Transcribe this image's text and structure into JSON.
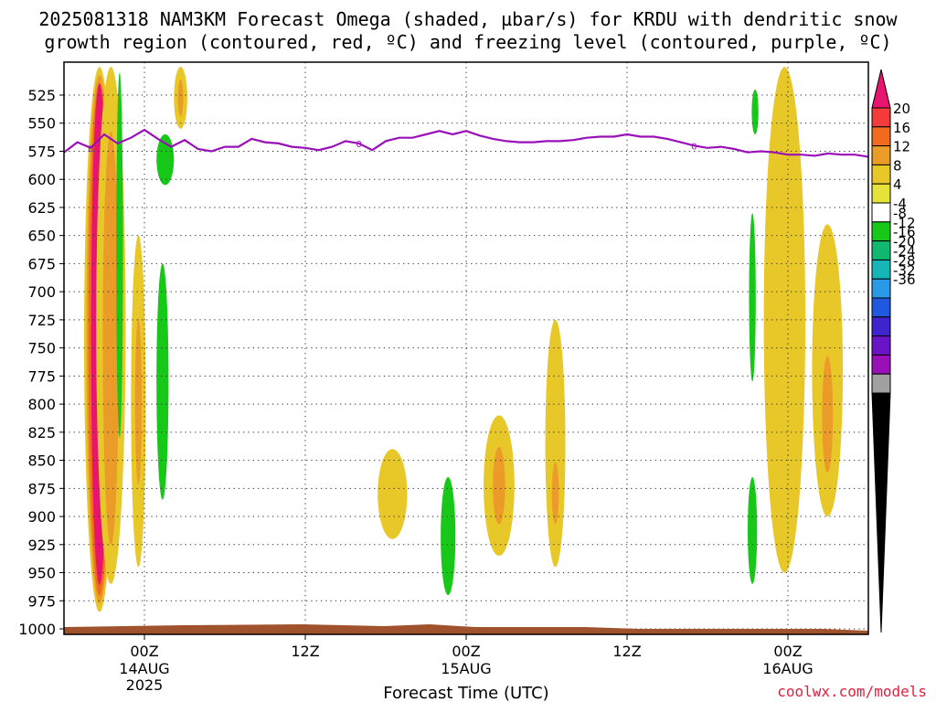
{
  "chart_data": {
    "type": "heatmap",
    "title_line1": "2025081318 NAM3KM Forecast Omega (shaded, µbar/s) for KRDU with dendritic snow",
    "title_line2": "growth region (contoured, red, ºC) and freezing level (contoured, purple, ºC)",
    "xlabel": "Forecast Time (UTC)",
    "credit": "coolwx.com/models",
    "x_ticks": [
      {
        "hour": 6,
        "label": "00Z",
        "sub": "14AUG",
        "sub2": "2025"
      },
      {
        "hour": 18,
        "label": "12Z",
        "sub": "",
        "sub2": ""
      },
      {
        "hour": 30,
        "label": "00Z",
        "sub": "15AUG",
        "sub2": ""
      },
      {
        "hour": 42,
        "label": "12Z",
        "sub": "",
        "sub2": ""
      },
      {
        "hour": 54,
        "label": "00Z",
        "sub": "16AUG",
        "sub2": ""
      }
    ],
    "y_ticks": [
      525,
      550,
      575,
      600,
      625,
      650,
      675,
      700,
      725,
      750,
      775,
      800,
      825,
      850,
      875,
      900,
      925,
      950,
      975,
      1000
    ],
    "y_range_hpa": [
      500,
      1010
    ],
    "x_range_hours": [
      0,
      60
    ],
    "grid": true,
    "colorbar": {
      "labels": [
        "20",
        "16",
        "12",
        "8",
        "4",
        "-4",
        "-8",
        "-12",
        "-16",
        "-20",
        "-24",
        "-28",
        "-32",
        "-36"
      ],
      "colors": [
        "#e8156e",
        "#f43c3c",
        "#f26a1d",
        "#eb9c28",
        "#e8c829",
        "#e5e23a",
        "#ffffff",
        "#18c818",
        "#10b870",
        "#16b6b8",
        "#2a9ae8",
        "#2058e0",
        "#3d24cc",
        "#6a14c8",
        "#9a10b8",
        "#a0a0a0",
        "#000000"
      ]
    },
    "freezing_level": {
      "label": "0",
      "hours": [
        0,
        1,
        2,
        3,
        4,
        5,
        6,
        7,
        8,
        9,
        10,
        11,
        12,
        13,
        14,
        15,
        16,
        17,
        18,
        19,
        20,
        21,
        22,
        23,
        24,
        25,
        26,
        27,
        28,
        29,
        30,
        31,
        32,
        33,
        34,
        35,
        36,
        37,
        38,
        39,
        40,
        41,
        42,
        43,
        44,
        45,
        46,
        47,
        48,
        49,
        50,
        51,
        52,
        53,
        54,
        55,
        56,
        57,
        58,
        59,
        60
      ],
      "pressure_hpa": [
        576,
        567,
        572,
        560,
        568,
        563,
        556,
        564,
        571,
        565,
        573,
        575,
        571,
        571,
        564,
        567,
        568,
        571,
        572,
        574,
        571,
        566,
        568,
        574,
        566,
        563,
        563,
        560,
        557,
        560,
        557,
        561,
        564,
        566,
        567,
        567,
        566,
        566,
        565,
        563,
        562,
        562,
        560,
        562,
        562,
        564,
        567,
        570,
        572,
        571,
        573,
        576,
        575,
        576,
        578,
        578,
        579,
        577,
        578,
        578,
        580
      ]
    },
    "omega_regions": [
      {
        "name": "core-1",
        "hours": [
          1.5,
          3.8
        ],
        "pressure_hpa": [
          500,
          985
        ],
        "max_value": 20
      },
      {
        "name": "core-2",
        "hours": [
          2.4,
          4.6
        ],
        "pressure_hpa": [
          500,
          960
        ],
        "max_value": 8
      },
      {
        "name": "core-3",
        "hours": [
          5.0,
          6.1
        ],
        "pressure_hpa": [
          650,
          945
        ],
        "max_value": 8
      },
      {
        "name": "upper-1",
        "hours": [
          8.2,
          9.2
        ],
        "pressure_hpa": [
          500,
          555
        ],
        "max_value": 8
      },
      {
        "name": "low-1",
        "hours": [
          23.4,
          25.6
        ],
        "pressure_hpa": [
          840,
          920
        ],
        "max_value": 4
      },
      {
        "name": "low-2",
        "hours": [
          31.3,
          33.6
        ],
        "pressure_hpa": [
          810,
          935
        ],
        "max_value": 8
      },
      {
        "name": "low-3",
        "hours": [
          35.9,
          37.4
        ],
        "pressure_hpa": [
          725,
          945
        ],
        "max_value": 8
      },
      {
        "name": "right-1",
        "hours": [
          52.2,
          55.3
        ],
        "pressure_hpa": [
          500,
          950
        ],
        "max_value": 8
      },
      {
        "name": "right-2",
        "hours": [
          55.8,
          58.1
        ],
        "pressure_hpa": [
          640,
          900
        ],
        "max_value": 8
      }
    ],
    "uplift_regions": [
      {
        "name": "neg-1",
        "hours": [
          3.9,
          4.4
        ],
        "pressure_hpa": [
          505,
          830
        ],
        "min_value": -8
      },
      {
        "name": "neg-2",
        "hours": [
          6.9,
          8.2
        ],
        "pressure_hpa": [
          560,
          605
        ],
        "min_value": -8
      },
      {
        "name": "neg-3",
        "hours": [
          6.9,
          7.8
        ],
        "pressure_hpa": [
          675,
          885
        ],
        "min_value": -8
      },
      {
        "name": "neg-4",
        "hours": [
          28.1,
          29.2
        ],
        "pressure_hpa": [
          865,
          970
        ],
        "min_value": -8
      },
      {
        "name": "neg-5",
        "hours": [
          51.3,
          51.8
        ],
        "pressure_hpa": [
          520,
          560
        ],
        "min_value": -8
      },
      {
        "name": "neg-6",
        "hours": [
          51.1,
          51.6
        ],
        "pressure_hpa": [
          630,
          780
        ],
        "min_value": -8
      },
      {
        "name": "neg-7",
        "hours": [
          51.0,
          51.7
        ],
        "pressure_hpa": [
          865,
          960
        ],
        "min_value": -8
      }
    ],
    "terrain_color": "#a0522d"
  }
}
